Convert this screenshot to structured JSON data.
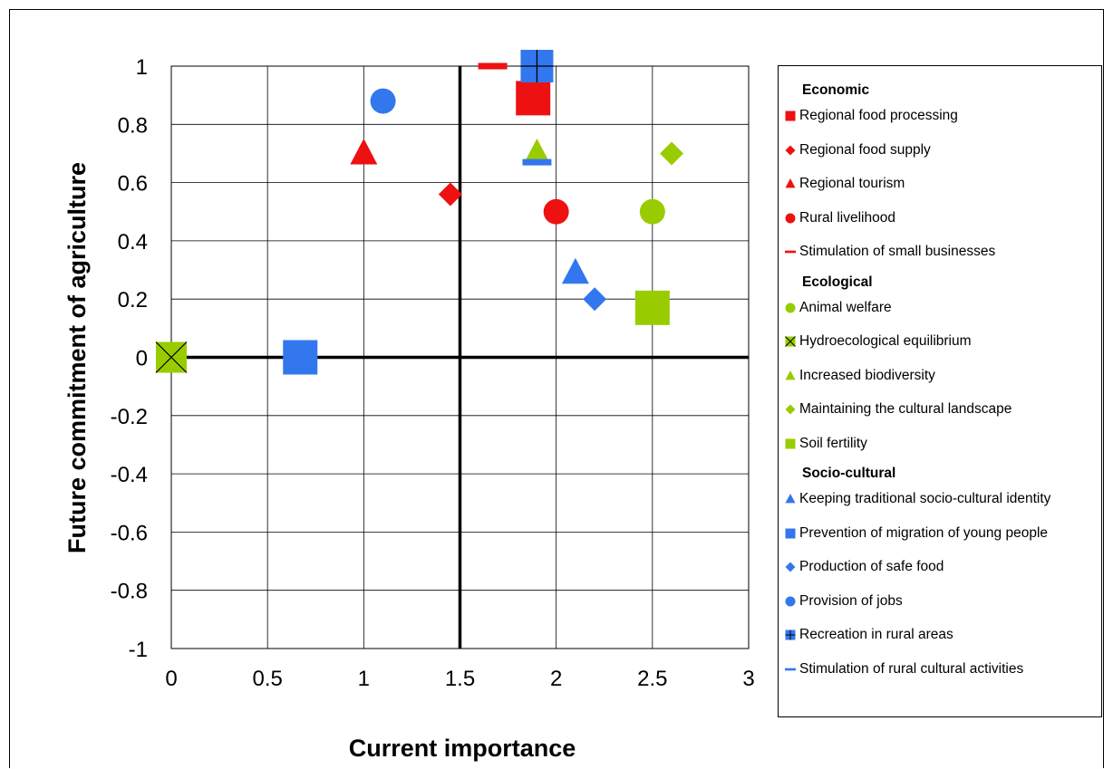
{
  "chart_data": {
    "type": "scatter",
    "title": "",
    "xlabel": "Current importance",
    "ylabel": "Future commitment of agriculture",
    "xlim": [
      0,
      3
    ],
    "ylim": [
      -1,
      1
    ],
    "x_ticks": [
      "0",
      "0.5",
      "1",
      "1.5",
      "2",
      "2.5",
      "3"
    ],
    "y_ticks": [
      "1",
      "0.8",
      "0.6",
      "0.4",
      "0.2",
      "0",
      "-0.2",
      "-0.4",
      "-0.6",
      "-0.8",
      "-1"
    ],
    "grid": true,
    "reference_lines": {
      "x": 1.5,
      "y": 0
    },
    "legend_position": "right",
    "groups": [
      {
        "name": "Economic",
        "series": [
          {
            "name": "Regional food processing",
            "marker": "square",
            "color": "#ee1111",
            "points": [
              [
                1.88,
                0.89
              ]
            ]
          },
          {
            "name": "Regional food supply",
            "marker": "diamond",
            "color": "#ee1111",
            "points": [
              [
                1.45,
                0.56
              ]
            ]
          },
          {
            "name": "Regional tourism",
            "marker": "triangle",
            "color": "#ee1111",
            "points": [
              [
                1.0,
                0.7
              ]
            ]
          },
          {
            "name": "Rural livelihood",
            "marker": "circle",
            "color": "#ee1111",
            "points": [
              [
                2.0,
                0.5
              ]
            ]
          },
          {
            "name": "Stimulation of small businesses",
            "marker": "dash",
            "color": "#ee1111",
            "points": [
              [
                1.67,
                1.0
              ]
            ]
          }
        ]
      },
      {
        "name": "Ecological",
        "series": [
          {
            "name": "Animal welfare",
            "marker": "circle",
            "color": "#99cc00",
            "points": [
              [
                2.5,
                0.5
              ]
            ]
          },
          {
            "name": "Hydroecological equilibrium",
            "marker": "square-x",
            "color": "#99cc00",
            "points": [
              [
                0.0,
                0.0
              ]
            ]
          },
          {
            "name": "Increased biodiversity",
            "marker": "triangle",
            "color": "#99cc00",
            "points": [
              [
                1.9,
                0.7
              ]
            ]
          },
          {
            "name": "Maintaining the cultural landscape",
            "marker": "diamond",
            "color": "#99cc00",
            "points": [
              [
                2.6,
                0.7
              ]
            ]
          },
          {
            "name": "Soil fertility",
            "marker": "square",
            "color": "#99cc00",
            "points": [
              [
                2.5,
                0.17
              ]
            ]
          }
        ]
      },
      {
        "name": "Socio-cultural",
        "series": [
          {
            "name": "Keeping traditional socio-cultural identity",
            "marker": "triangle",
            "color": "#3377ee",
            "points": [
              [
                2.1,
                0.29
              ]
            ]
          },
          {
            "name": "Prevention of migration of young people",
            "marker": "square",
            "color": "#3377ee",
            "points": [
              [
                0.67,
                0.0
              ]
            ]
          },
          {
            "name": "Production of safe food",
            "marker": "diamond",
            "color": "#3377ee",
            "points": [
              [
                2.2,
                0.2
              ]
            ]
          },
          {
            "name": "Provision of jobs",
            "marker": "circle",
            "color": "#3377ee",
            "points": [
              [
                1.1,
                0.88
              ]
            ]
          },
          {
            "name": "Recreation in rural areas",
            "marker": "square-plus",
            "color": "#3377ee",
            "points": [
              [
                1.9,
                1.0
              ]
            ]
          },
          {
            "name": "Stimulation of rural cultural activities",
            "marker": "dash",
            "color": "#3377ee",
            "points": [
              [
                1.9,
                0.67
              ]
            ]
          }
        ]
      }
    ]
  }
}
